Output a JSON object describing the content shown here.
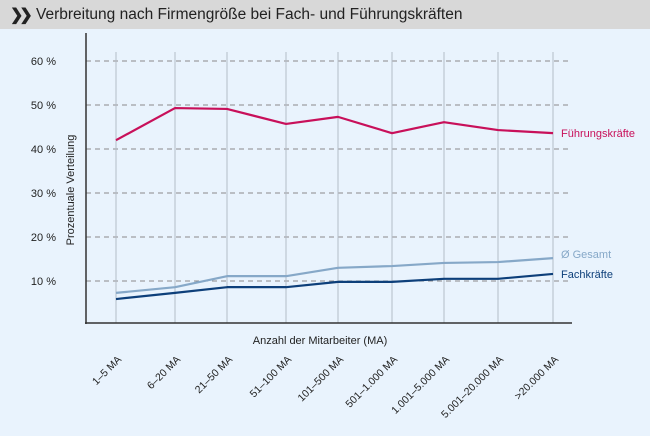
{
  "header": {
    "icon": "double-chevron-right-icon",
    "title": "Verbreitung nach Firmengröße bei Fach- und Führungskräften"
  },
  "chart_data": {
    "type": "line",
    "title": "Verbreitung nach Firmengröße bei Fach- und Führungskräften",
    "xlabel": "Anzahl der Mitarbeiter (MA)",
    "ylabel": "Prozentuale Verteilung",
    "ylim": [
      0,
      65
    ],
    "yticks": [
      10,
      20,
      30,
      40,
      50,
      60
    ],
    "ytick_labels": [
      "10 %",
      "20 %",
      "30 %",
      "40 %",
      "50 %",
      "60 %"
    ],
    "grid": "horizontal dashed, vertical solid",
    "legend": "inline labels at line ends (right)",
    "categories": [
      "1–5 MA",
      "6–20 MA",
      "21–50 MA",
      "51–100 MA",
      "101–500 MA",
      "501–1.000 MA",
      "1.001–5.000 MA",
      "5.001–20.000 MA",
      ">20.000 MA"
    ],
    "series": [
      {
        "name": "Führungskräfte",
        "color": "#c8105a",
        "values": [
          42.0,
          49.3,
          49.1,
          45.7,
          47.3,
          43.6,
          46.1,
          44.3,
          43.6
        ]
      },
      {
        "name": "Ø Gesamt",
        "color": "#86a8c8",
        "values": [
          7.3,
          8.6,
          11.1,
          11.1,
          13.0,
          13.4,
          14.1,
          14.3,
          15.2
        ]
      },
      {
        "name": "Fachkräfte",
        "color": "#0d3f7a",
        "values": [
          5.9,
          7.3,
          8.6,
          8.6,
          9.8,
          9.8,
          10.5,
          10.5,
          11.6
        ]
      }
    ]
  }
}
